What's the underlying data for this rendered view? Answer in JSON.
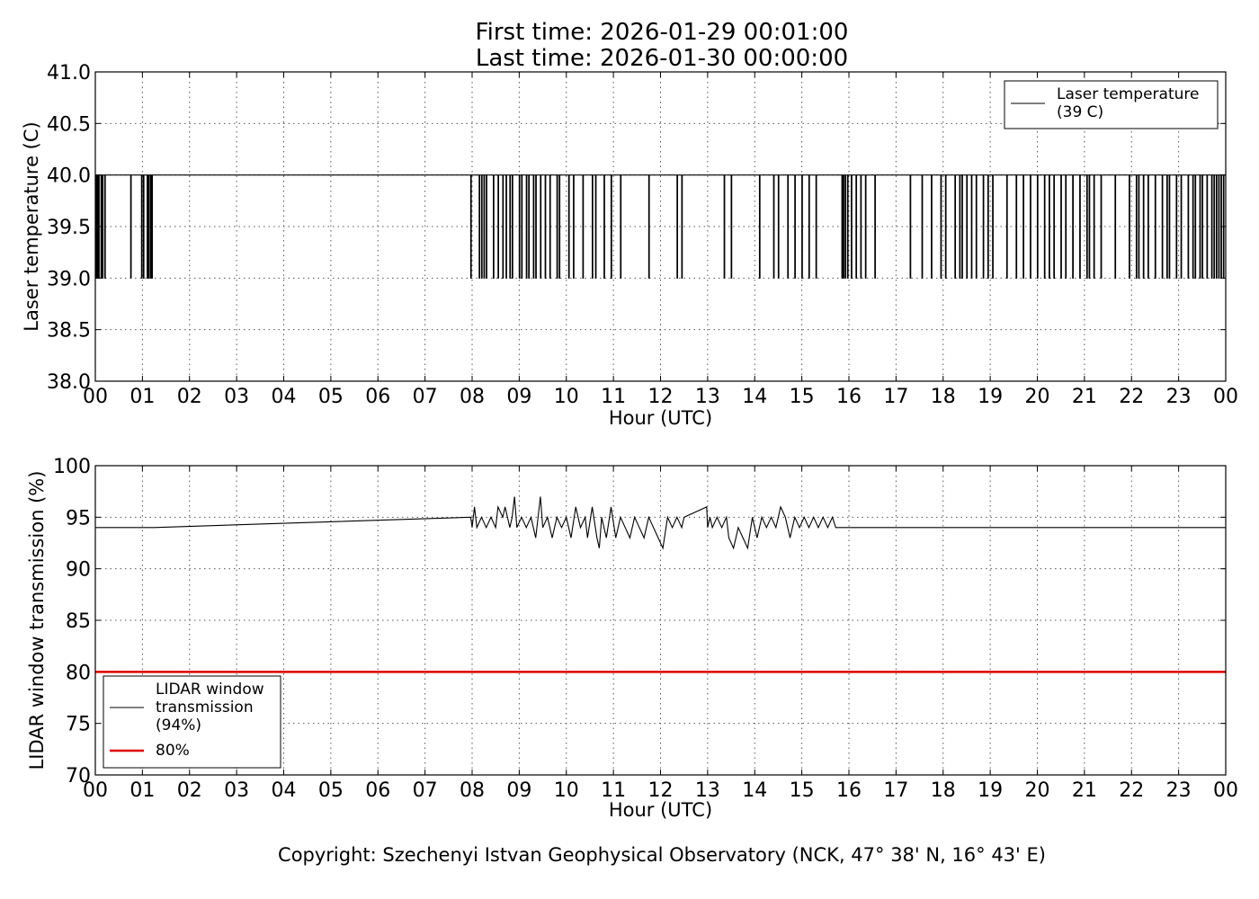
{
  "title": {
    "line1": "First time: 2026-01-29 00:01:00",
    "line2": "Last time: 2026-01-30 00:00:00"
  },
  "copyright": "Copyright: Szechenyi Istvan Geophysical Observatory (NCK, 47° 38' N, 16° 43' E)",
  "chart_data": [
    {
      "type": "line",
      "xlabel": "Hour (UTC)",
      "ylabel": "Laser temperature (C)",
      "xlim": [
        0,
        24
      ],
      "ylim": [
        38.0,
        41.0
      ],
      "x_ticks": [
        "00",
        "01",
        "02",
        "03",
        "04",
        "05",
        "06",
        "07",
        "08",
        "09",
        "10",
        "11",
        "12",
        "13",
        "14",
        "15",
        "16",
        "17",
        "18",
        "19",
        "20",
        "21",
        "22",
        "23",
        "00"
      ],
      "y_ticks": [
        "38.0",
        "38.5",
        "39.0",
        "39.5",
        "40.0",
        "40.5",
        "41.0"
      ],
      "grid": true,
      "legend": {
        "placement": "upper right",
        "entries": [
          {
            "label": "Laser temperature (39 C)",
            "color": "#000000"
          }
        ]
      },
      "series": [
        {
          "name": "Laser temperature (39 C)",
          "color": "#000000",
          "baseline": 40.0,
          "low": 39.0,
          "drop_hours": [
            0.02,
            0.05,
            0.07,
            0.12,
            0.15,
            0.2,
            0.75,
            0.98,
            1.02,
            1.1,
            1.13,
            1.17,
            1.2,
            7.97,
            8.15,
            8.2,
            8.25,
            8.3,
            8.45,
            8.55,
            8.65,
            8.72,
            8.8,
            8.85,
            9.0,
            9.05,
            9.15,
            9.2,
            9.3,
            9.35,
            9.45,
            9.55,
            9.65,
            9.8,
            9.85,
            10.05,
            10.15,
            10.35,
            10.55,
            10.62,
            10.8,
            10.95,
            11.15,
            11.75,
            12.35,
            12.45,
            13.35,
            13.5,
            14.1,
            14.4,
            14.5,
            14.7,
            14.85,
            15.0,
            15.15,
            15.3,
            15.85,
            15.88,
            15.92,
            15.97,
            16.05,
            16.15,
            16.25,
            16.35,
            16.55,
            17.3,
            17.55,
            17.75,
            17.95,
            18.05,
            18.25,
            18.35,
            18.4,
            18.5,
            18.6,
            18.7,
            18.85,
            18.95,
            19.05,
            19.35,
            19.55,
            19.7,
            19.85,
            20.0,
            20.15,
            20.25,
            20.35,
            20.5,
            20.6,
            20.75,
            20.9,
            21.05,
            21.1,
            21.2,
            21.35,
            21.65,
            21.95,
            22.1,
            22.15,
            22.25,
            22.35,
            22.5,
            22.65,
            22.75,
            22.8,
            22.95,
            23.05,
            23.2,
            23.3,
            23.35,
            23.45,
            23.5,
            23.6,
            23.7,
            23.75,
            23.8,
            23.85,
            23.9,
            23.95
          ]
        }
      ]
    },
    {
      "type": "line",
      "xlabel": "Hour (UTC)",
      "ylabel": "LIDAR window transmission (%)",
      "xlim": [
        0,
        24
      ],
      "ylim": [
        70,
        100
      ],
      "x_ticks": [
        "00",
        "01",
        "02",
        "03",
        "04",
        "05",
        "06",
        "07",
        "08",
        "09",
        "10",
        "11",
        "12",
        "13",
        "14",
        "15",
        "16",
        "17",
        "18",
        "19",
        "20",
        "21",
        "22",
        "23",
        "00"
      ],
      "y_ticks": [
        "70",
        "75",
        "80",
        "85",
        "90",
        "95",
        "100"
      ],
      "grid": true,
      "legend": {
        "placement": "lower left",
        "entries": [
          {
            "label": "LIDAR window transmission (94%)",
            "color": "#000000",
            "lines": [
              "LIDAR window",
              "transmission",
              "(94%)"
            ]
          },
          {
            "label": "80%",
            "color": "#e00000",
            "lines": [
              "80%"
            ]
          }
        ]
      },
      "series": [
        {
          "name": "LIDAR window transmission (94%)",
          "color": "#000000",
          "points": [
            [
              0,
              94
            ],
            [
              1.25,
              94
            ],
            [
              7.97,
              95
            ],
            [
              8.0,
              94
            ],
            [
              8.05,
              96
            ],
            [
              8.1,
              94
            ],
            [
              8.2,
              95
            ],
            [
              8.3,
              94
            ],
            [
              8.4,
              95
            ],
            [
              8.5,
              94
            ],
            [
              8.55,
              96
            ],
            [
              8.65,
              95
            ],
            [
              8.7,
              96
            ],
            [
              8.8,
              94
            ],
            [
              8.85,
              95
            ],
            [
              8.9,
              97
            ],
            [
              8.95,
              94
            ],
            [
              9.05,
              95
            ],
            [
              9.15,
              94
            ],
            [
              9.25,
              95
            ],
            [
              9.35,
              93
            ],
            [
              9.45,
              97
            ],
            [
              9.5,
              94
            ],
            [
              9.6,
              95
            ],
            [
              9.7,
              93
            ],
            [
              9.8,
              95
            ],
            [
              9.9,
              94
            ],
            [
              10.0,
              95
            ],
            [
              10.1,
              93
            ],
            [
              10.2,
              96
            ],
            [
              10.3,
              94
            ],
            [
              10.4,
              95
            ],
            [
              10.45,
              93
            ],
            [
              10.55,
              96
            ],
            [
              10.65,
              93
            ],
            [
              10.7,
              92
            ],
            [
              10.75,
              95
            ],
            [
              10.85,
              93
            ],
            [
              10.95,
              96
            ],
            [
              11.05,
              93
            ],
            [
              11.15,
              95
            ],
            [
              11.25,
              94
            ],
            [
              11.35,
              93
            ],
            [
              11.45,
              95
            ],
            [
              11.55,
              94
            ],
            [
              11.65,
              93
            ],
            [
              11.75,
              95
            ],
            [
              11.85,
              94
            ],
            [
              11.95,
              93
            ],
            [
              12.05,
              92
            ],
            [
              12.15,
              95
            ],
            [
              12.25,
              94
            ],
            [
              12.35,
              95
            ],
            [
              12.45,
              94
            ],
            [
              12.5,
              95
            ],
            [
              12.98,
              96
            ],
            [
              13.0,
              94
            ],
            [
              13.05,
              95
            ],
            [
              13.1,
              94
            ],
            [
              13.2,
              95
            ],
            [
              13.3,
              94
            ],
            [
              13.4,
              95
            ],
            [
              13.45,
              93
            ],
            [
              13.55,
              92
            ],
            [
              13.65,
              94
            ],
            [
              13.75,
              93
            ],
            [
              13.85,
              92
            ],
            [
              13.95,
              95
            ],
            [
              14.05,
              93
            ],
            [
              14.15,
              95
            ],
            [
              14.25,
              94
            ],
            [
              14.35,
              95
            ],
            [
              14.45,
              94
            ],
            [
              14.55,
              96
            ],
            [
              14.65,
              95
            ],
            [
              14.75,
              93
            ],
            [
              14.85,
              95
            ],
            [
              14.95,
              94
            ],
            [
              15.05,
              95
            ],
            [
              15.15,
              94
            ],
            [
              15.25,
              95
            ],
            [
              15.35,
              94
            ],
            [
              15.45,
              95
            ],
            [
              15.55,
              94
            ],
            [
              15.65,
              95
            ],
            [
              15.72,
              94
            ],
            [
              24,
              94
            ]
          ]
        },
        {
          "name": "80%",
          "color": "#e00000",
          "points": [
            [
              0,
              80
            ],
            [
              24,
              80
            ]
          ]
        }
      ]
    }
  ]
}
